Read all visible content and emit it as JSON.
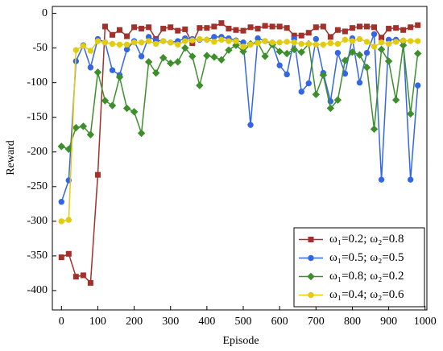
{
  "chart_data": {
    "type": "line",
    "xlabel": "Episode",
    "ylabel": "Reward",
    "x": [
      0,
      20,
      40,
      60,
      80,
      100,
      120,
      140,
      160,
      180,
      200,
      220,
      240,
      260,
      280,
      300,
      320,
      340,
      360,
      380,
      400,
      420,
      440,
      460,
      480,
      500,
      520,
      540,
      560,
      580,
      600,
      620,
      640,
      660,
      680,
      700,
      720,
      740,
      760,
      780,
      800,
      820,
      840,
      860,
      880,
      900,
      920,
      940,
      960,
      980
    ],
    "series": [
      {
        "name": "ω₁=0.2; ω₂=0.8",
        "color": "#a3302b",
        "marker": "square",
        "values": [
          -352,
          -347,
          -380,
          -378,
          -389,
          -233,
          -19,
          -31,
          -24,
          -33,
          -20,
          -22,
          -20,
          -37,
          -22,
          -20,
          -25,
          -23,
          -43,
          -21,
          -21,
          -19,
          -14,
          -22,
          -24,
          -25,
          -20,
          -22,
          -18,
          -19,
          -19,
          -21,
          -32,
          -32,
          -28,
          -20,
          -19,
          -34,
          -24,
          -26,
          -21,
          -19,
          -19,
          -20,
          -35,
          -22,
          -21,
          -24,
          -20,
          -17
        ]
      },
      {
        "name": "ω₁=0.5; ω₂=0.5",
        "color": "#3366e6",
        "marker": "circle",
        "values": [
          -272,
          -241,
          -69,
          -46,
          -78,
          -37,
          -42,
          -82,
          -89,
          -52,
          -40,
          -62,
          -34,
          -39,
          -40,
          -42,
          -40,
          -36,
          -37,
          -38,
          -38,
          -34,
          -34,
          -36,
          -39,
          -42,
          -161,
          -36,
          -40,
          -44,
          -75,
          -88,
          -37,
          -113,
          -101,
          -37,
          -86,
          -127,
          -57,
          -87,
          -36,
          -100,
          -57,
          -30,
          -240,
          -38,
          -38,
          -40,
          -240,
          -104
        ]
      },
      {
        "name": "ω₁=0.8; ω₂=0.2",
        "color": "#3d8f2c",
        "marker": "diamond",
        "values": [
          -192,
          -196,
          -165,
          -163,
          -175,
          -85,
          -126,
          -133,
          -92,
          -137,
          -142,
          -173,
          -70,
          -86,
          -64,
          -72,
          -70,
          -50,
          -62,
          -104,
          -61,
          -63,
          -67,
          -53,
          -46,
          -55,
          -44,
          -42,
          -62,
          -45,
          -55,
          -58,
          -52,
          -56,
          -44,
          -117,
          -89,
          -137,
          -125,
          -68,
          -56,
          -60,
          -78,
          -167,
          -52,
          -69,
          -125,
          -46,
          -145,
          -58
        ]
      },
      {
        "name": "ω₁=0.4; ω₂=0.6",
        "color": "#e3cc10",
        "marker": "circle",
        "values": [
          -300,
          -298,
          -53,
          -47,
          -54,
          -40,
          -42,
          -44,
          -45,
          -45,
          -42,
          -42,
          -40,
          -44,
          -40,
          -42,
          -45,
          -40,
          -39,
          -37,
          -38,
          -41,
          -38,
          -40,
          -40,
          -48,
          -45,
          -43,
          -40,
          -42,
          -42,
          -41,
          -42,
          -44,
          -44,
          -45,
          -45,
          -43,
          -44,
          -38,
          -40,
          -37,
          -41,
          -48,
          -42,
          -44,
          -41,
          -39,
          -40,
          -40
        ]
      }
    ],
    "xlim": [
      -25,
      1005
    ],
    "ylim": [
      -428,
      10
    ],
    "xticks": [
      0,
      100,
      200,
      300,
      400,
      500,
      600,
      700,
      800,
      900,
      1000
    ],
    "yticks": [
      0,
      -50,
      -100,
      -150,
      -200,
      -250,
      -300,
      -350,
      -400
    ],
    "legend": "lower right"
  }
}
